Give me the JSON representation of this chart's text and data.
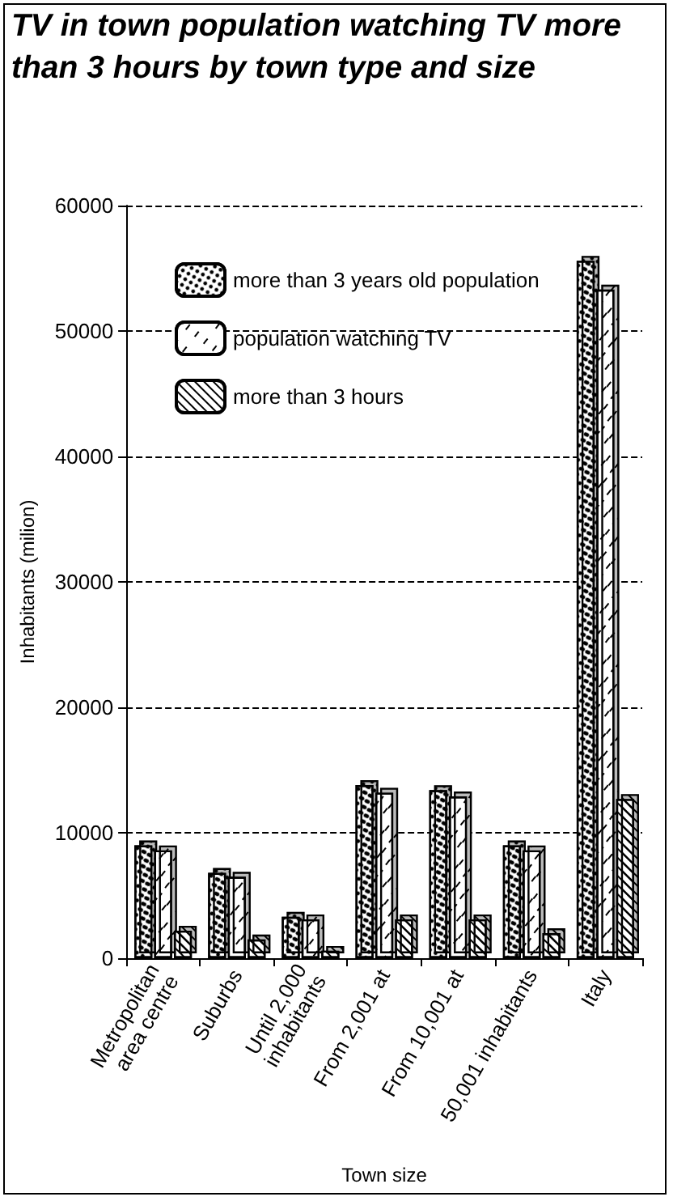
{
  "chart_data": {
    "type": "bar",
    "title": "TV in town population watching TV more than 3 hours by town type and size",
    "xlabel": "Town size",
    "ylabel": "Inhabitants (milion)",
    "categories": [
      "Metropolitan\narea centre",
      "Suburbs",
      "Until 2,000\ninhabitants",
      "From 2,001 at",
      "From 10,001 at",
      "50,001 inhabitants",
      "Italy"
    ],
    "series": [
      {
        "name": "more than 3 years old population",
        "color": "#ffffff",
        "values": [
          9000,
          6800,
          3300,
          13800,
          13400,
          9000,
          55600
        ]
      },
      {
        "name": "population watching TV",
        "color": "#ffffff",
        "values": [
          8600,
          6500,
          3100,
          13200,
          12900,
          8600,
          53300
        ]
      },
      {
        "name": "more than 3 hours",
        "color": "#ffffff",
        "values": [
          2200,
          1500,
          600,
          3100,
          3100,
          2000,
          12700
        ]
      }
    ],
    "ylim": [
      0,
      60000
    ],
    "yticks": [
      0,
      10000,
      20000,
      30000,
      40000,
      50000,
      60000
    ],
    "grid": "y",
    "legend": "top left"
  }
}
